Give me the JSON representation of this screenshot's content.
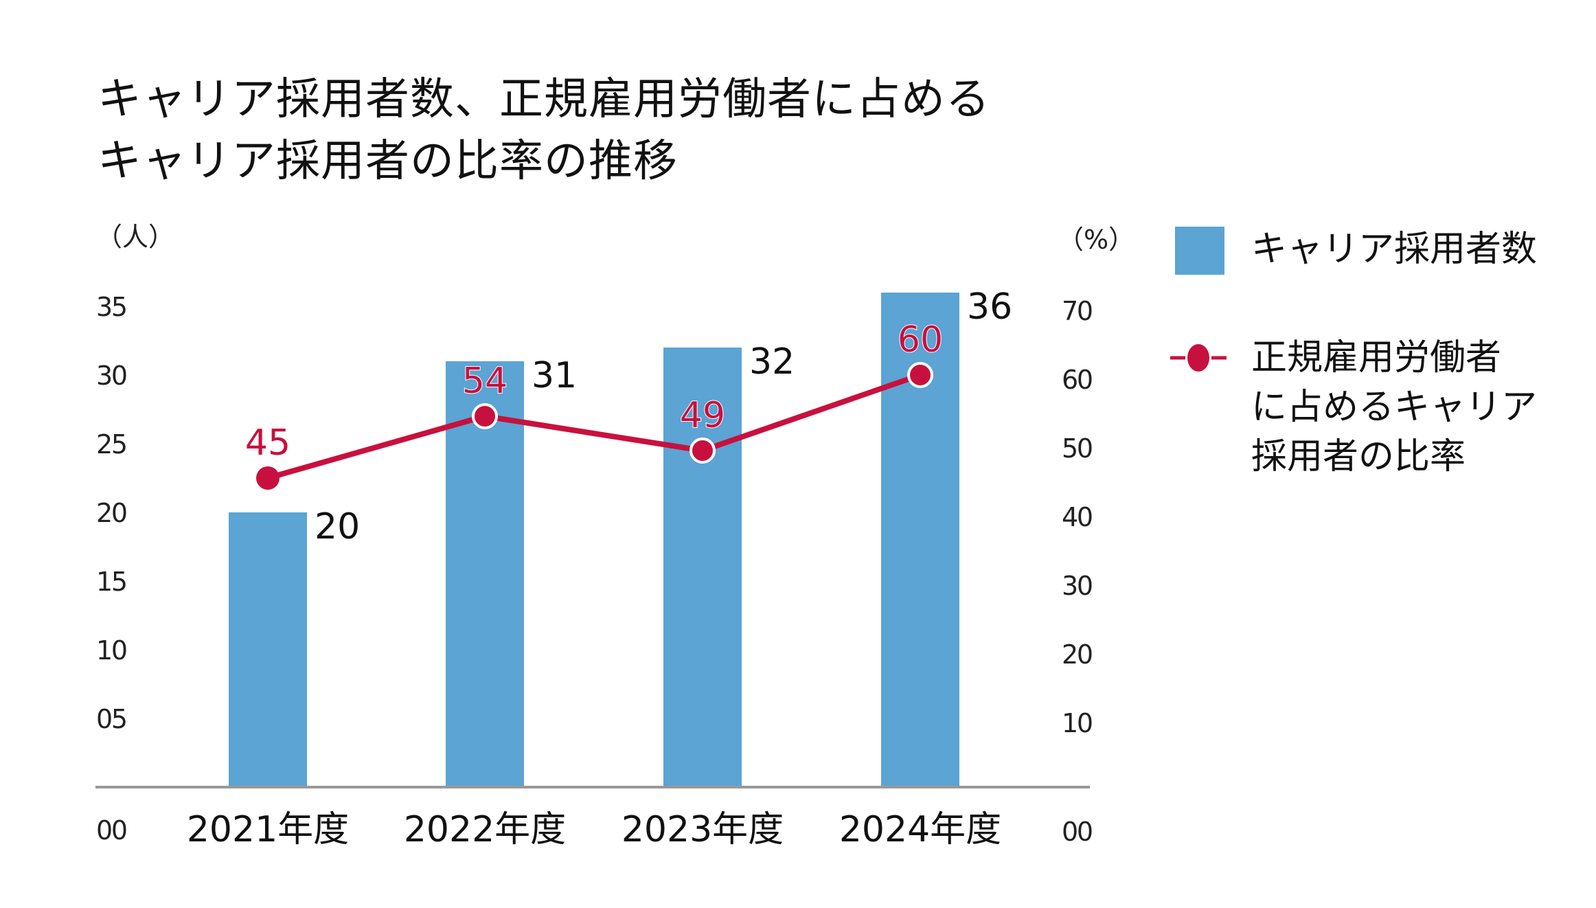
{
  "chart_data": {
    "type": "bar+line",
    "title_lines": [
      "キャリア採用者数、正規雇用労働者に占める",
      "キャリア採用者の比率の推移"
    ],
    "categories": [
      "2021年度",
      "2022年度",
      "2023年度",
      "2024年度"
    ],
    "series": [
      {
        "name": "キャリア採用者数",
        "type": "bar",
        "axis": "left",
        "values": [
          20,
          31,
          32,
          36
        ],
        "color": "#5ba4d3"
      },
      {
        "name": "正規雇用労働者に占めるキャリア採用者の比率",
        "legend_lines": [
          "正規雇用労働者",
          "に占めるキャリア",
          "採用者の比率"
        ],
        "type": "line",
        "axis": "right",
        "values": [
          45,
          54,
          49,
          60
        ],
        "color": "#c8103e"
      }
    ],
    "left_axis": {
      "unit": "（人）",
      "ylim": [
        0,
        35
      ],
      "ticks": [
        "00",
        "05",
        "10",
        "15",
        "20",
        "25",
        "30",
        "35"
      ]
    },
    "right_axis": {
      "unit": "（%）",
      "ylim": [
        0,
        70
      ],
      "ticks": [
        "00",
        "10",
        "20",
        "30",
        "40",
        "50",
        "60",
        "70"
      ]
    },
    "grid": false,
    "legend_placement": "right"
  }
}
